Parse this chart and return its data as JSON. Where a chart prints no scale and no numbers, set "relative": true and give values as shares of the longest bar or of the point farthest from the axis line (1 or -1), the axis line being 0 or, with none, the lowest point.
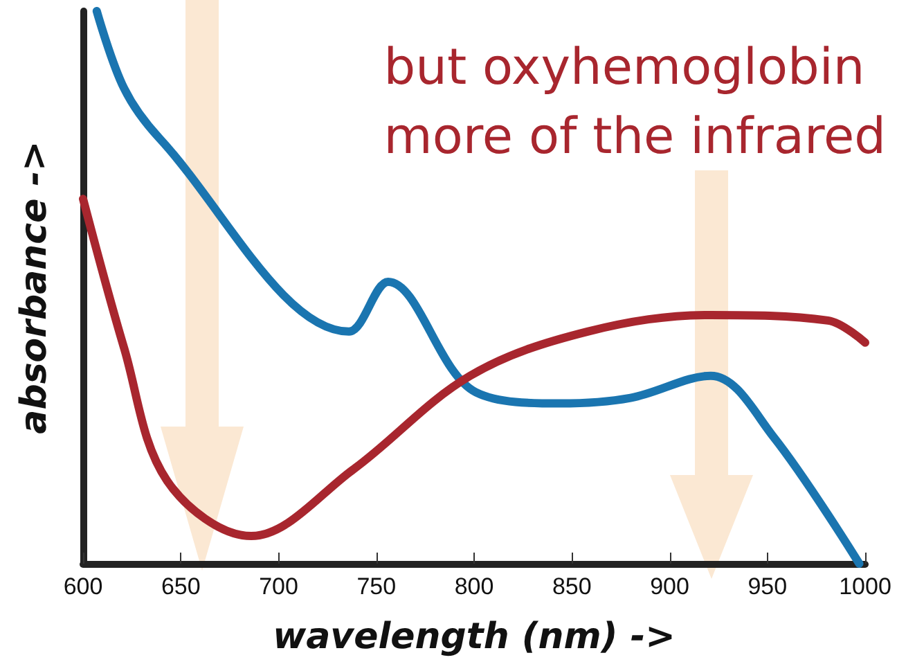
{
  "chart_data": {
    "type": "line",
    "relative": true,
    "xlabel": "wavelength (nm) ->",
    "ylabel": "absorbance ->",
    "annotations": [
      "but oxyhemoglobin\nmore of the infrared"
    ],
    "xlim": [
      600,
      1000
    ],
    "xticks": [
      600,
      650,
      700,
      750,
      800,
      850,
      900,
      950,
      1000
    ],
    "grid": false,
    "marker": "none",
    "line_style": "solid",
    "series": [
      {
        "color": "#1a75b0",
        "x": [
          607,
          621,
          639,
          736,
          756,
          801,
          844,
          880,
          921,
          953,
          997
        ],
        "values": [
          1.0,
          0.86,
          0.77,
          0.42,
          0.51,
          0.31,
          0.29,
          0.3,
          0.34,
          0.23,
          0.0
        ]
      },
      {
        "color": "#a8262e",
        "x": [
          600,
          621,
          643,
          686,
          738,
          798,
          858,
          921,
          981,
          1000
        ],
        "values": [
          0.66,
          0.39,
          0.15,
          0.05,
          0.17,
          0.34,
          0.42,
          0.45,
          0.44,
          0.4
        ]
      }
    ]
  }
}
